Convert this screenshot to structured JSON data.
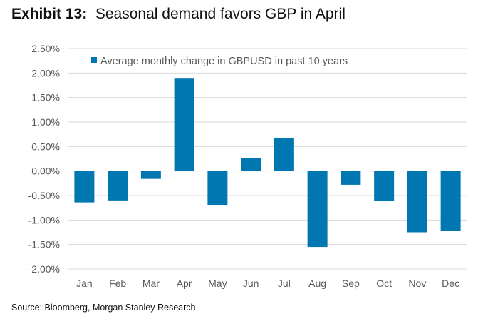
{
  "title_prefix": "Exhibit 13:",
  "title": "Seasonal demand favors GBP in April",
  "source": "Source: Bloomberg, Morgan Stanley Research",
  "chart_data": {
    "type": "bar",
    "title": "Seasonal demand favors GBP in April",
    "categories": [
      "Jan",
      "Feb",
      "Mar",
      "Apr",
      "May",
      "Jun",
      "Jul",
      "Aug",
      "Sep",
      "Oct",
      "Nov",
      "Dec"
    ],
    "series": [
      {
        "name": "Average monthly change in GBPUSD in past 10 years",
        "values": [
          -0.64,
          -0.6,
          -0.16,
          1.9,
          -0.69,
          0.27,
          0.68,
          -1.55,
          -0.28,
          -0.61,
          -1.25,
          -1.22
        ]
      }
    ],
    "yticks": [
      "2.50%",
      "2.00%",
      "1.50%",
      "1.00%",
      "0.50%",
      "0.00%",
      "-0.50%",
      "-1.00%",
      "-1.50%",
      "-2.00%"
    ],
    "ylim": [
      -2.0,
      2.5
    ],
    "grid": true,
    "legend": "top-left",
    "color": "#0077b0"
  }
}
